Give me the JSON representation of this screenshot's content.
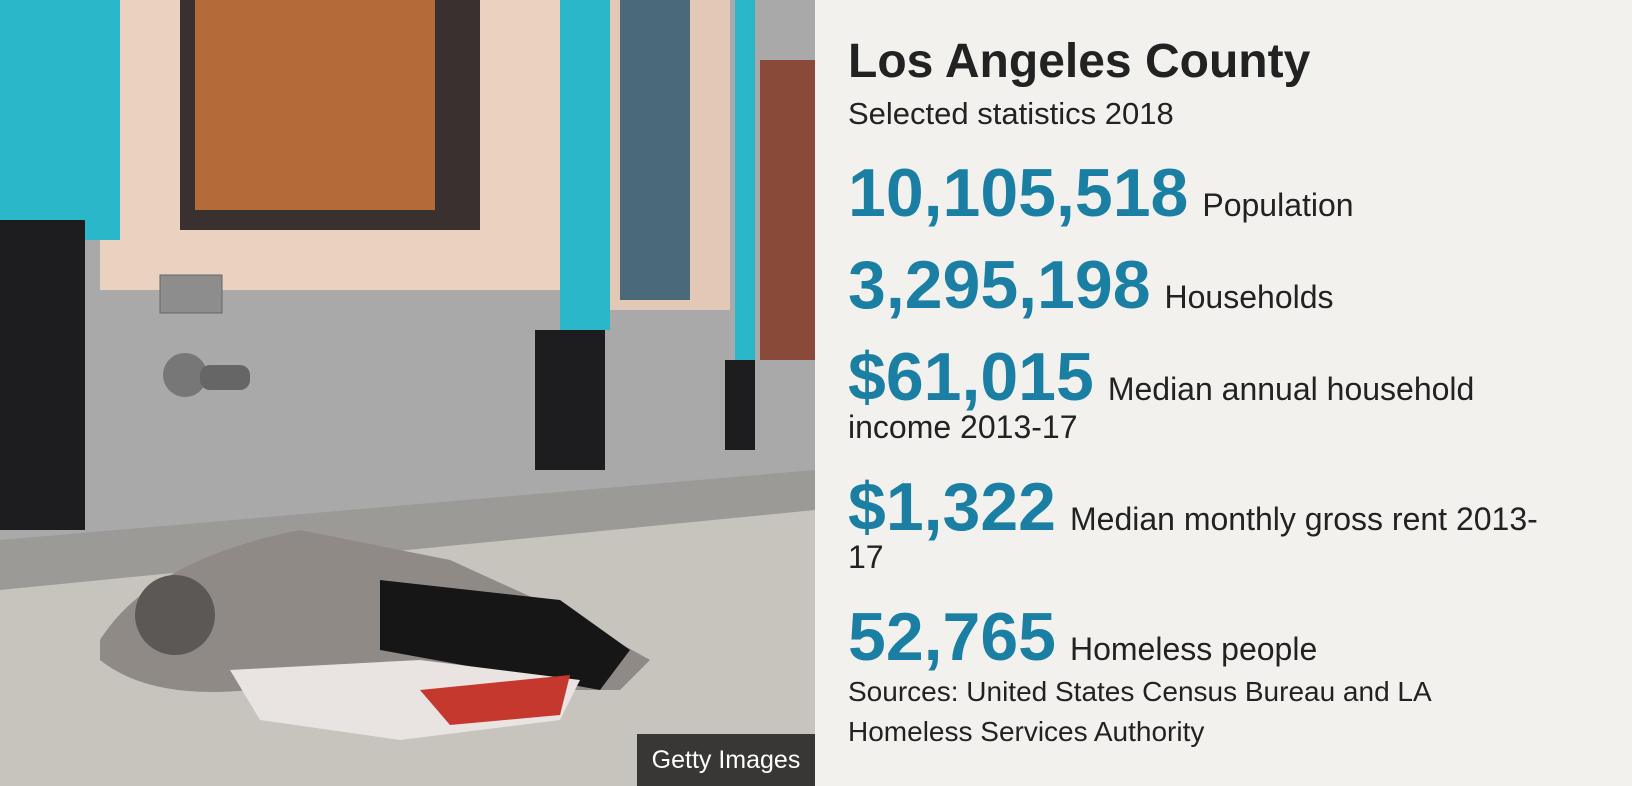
{
  "photo_credit": "Getty Images",
  "title": "Los Angeles County",
  "subtitle": "Selected statistics 2018",
  "stats": [
    {
      "value": "10,105,518",
      "label": "Population"
    },
    {
      "value": "3,295,198",
      "label": "Households"
    },
    {
      "value": "$61,015",
      "label": "Median annual household income 2013-17"
    },
    {
      "value": "$1,322",
      "label": "Median monthly gross rent 2013-17"
    },
    {
      "value": "52,765",
      "label": "Homeless people"
    }
  ],
  "sources": "Sources: United States Census Bureau and LA Homeless Services Authority"
}
